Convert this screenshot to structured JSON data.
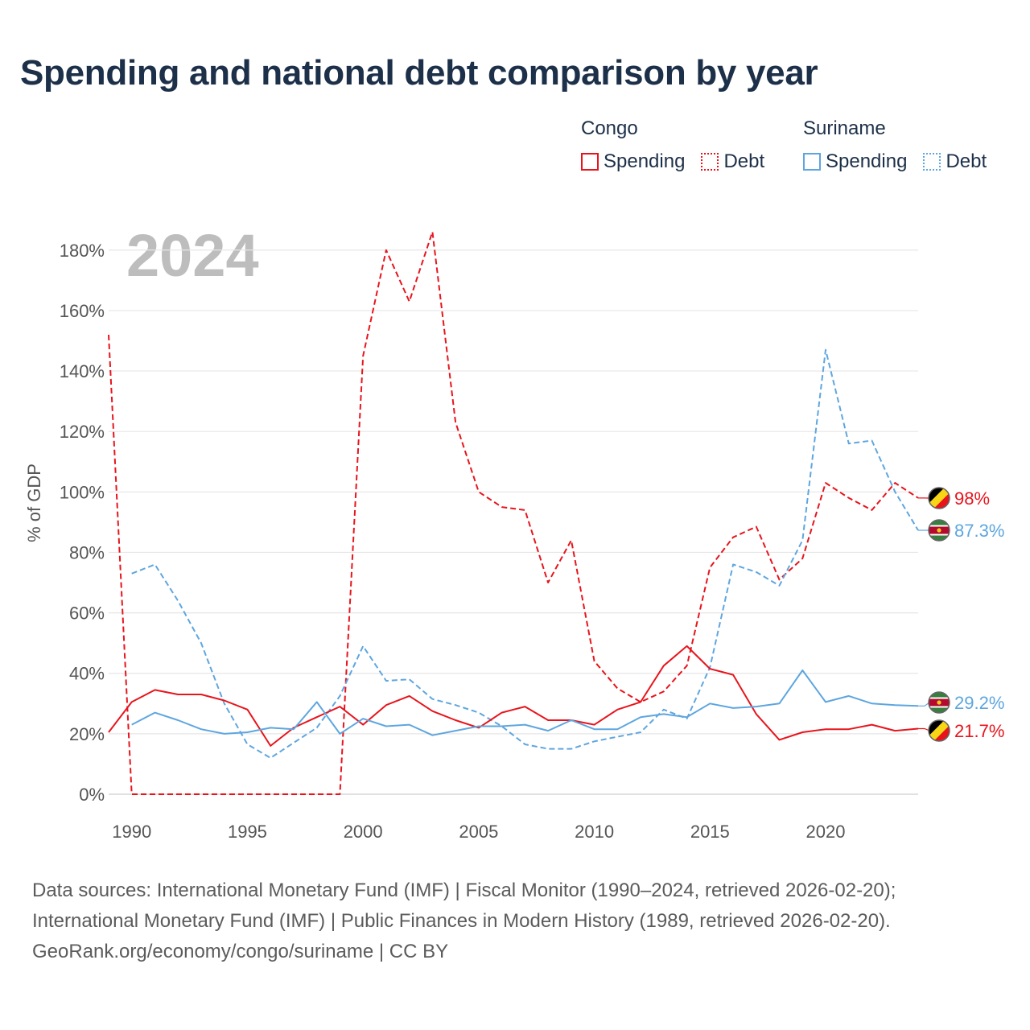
{
  "title": "Spending and national debt comparison by year",
  "legend": {
    "groups": [
      {
        "name": "Congo",
        "spending_label": "Spending",
        "debt_label": "Debt",
        "color": "#e8141c"
      },
      {
        "name": "Suriname",
        "spending_label": "Spending",
        "debt_label": "Debt",
        "color": "#5ea6df"
      }
    ]
  },
  "year_watermark": "2024",
  "footer": {
    "line1": "Data sources: International Monetary Fund (IMF) | Fiscal Monitor (1990–2024, retrieved 2026-02-20);",
    "line2": "International Monetary Fund (IMF) | Public Finances in Modern History (1989, retrieved 2026-02-20).",
    "line3": "GeoRank.org/economy/congo/suriname | CC BY"
  },
  "chart_data": {
    "type": "line",
    "title": "Spending and national debt comparison by year",
    "xlabel": "",
    "ylabel": "% of GDP",
    "xlim": [
      1989,
      2024
    ],
    "ylim": [
      0,
      185
    ],
    "y_ticks": [
      0,
      20,
      40,
      60,
      80,
      100,
      120,
      140,
      160,
      180
    ],
    "y_tick_labels": [
      "0%",
      "20%",
      "40%",
      "60%",
      "80%",
      "100%",
      "120%",
      "140%",
      "160%",
      "180%"
    ],
    "x_ticks": [
      1990,
      1995,
      2000,
      2005,
      2010,
      2015,
      2020
    ],
    "x_tick_labels": [
      "1990",
      "1995",
      "2000",
      "2005",
      "2010",
      "2015",
      "2020"
    ],
    "grid": true,
    "legend_position": "top-right",
    "series": [
      {
        "name": "Congo Debt",
        "country": "Congo",
        "measure": "Debt",
        "color": "#e8141c",
        "dashed": true,
        "x": [
          1989,
          1990,
          1991,
          1992,
          1993,
          1994,
          1995,
          1996,
          1997,
          1998,
          1999,
          2000,
          2001,
          2002,
          2003,
          2004,
          2005,
          2006,
          2007,
          2008,
          2009,
          2010,
          2011,
          2012,
          2013,
          2014,
          2015,
          2016,
          2017,
          2018,
          2019,
          2020,
          2021,
          2022,
          2023,
          2024
        ],
        "values": [
          152,
          0,
          0,
          0,
          0,
          0,
          0,
          0,
          0,
          0,
          0,
          145,
          180,
          163,
          186,
          123,
          100,
          95,
          94,
          70,
          84,
          44,
          35,
          30.5,
          34,
          42.5,
          75,
          85,
          88.5,
          71,
          78,
          103,
          98,
          94,
          103,
          98
        ],
        "end_label": "98%"
      },
      {
        "name": "Suriname Debt",
        "country": "Suriname",
        "measure": "Debt",
        "color": "#5ea6df",
        "dashed": true,
        "x": [
          1990,
          1991,
          1992,
          1993,
          1994,
          1995,
          1996,
          1997,
          1998,
          1999,
          2000,
          2001,
          2002,
          2003,
          2004,
          2005,
          2006,
          2007,
          2008,
          2009,
          2010,
          2011,
          2012,
          2013,
          2014,
          2015,
          2016,
          2017,
          2018,
          2019,
          2020,
          2021,
          2022,
          2023,
          2024
        ],
        "values": [
          73,
          76,
          64,
          50,
          30,
          16.5,
          12,
          17,
          22,
          32.5,
          49,
          37.5,
          38,
          31.5,
          29.5,
          27,
          22.5,
          16.5,
          15,
          15,
          17.5,
          19,
          20.5,
          28,
          25,
          42,
          76,
          73.5,
          69,
          84,
          147,
          116,
          117,
          100,
          87.3
        ],
        "end_label": "87.3%"
      },
      {
        "name": "Congo Spending",
        "country": "Congo",
        "measure": "Spending",
        "color": "#e8141c",
        "dashed": false,
        "x": [
          1989,
          1990,
          1991,
          1992,
          1993,
          1994,
          1995,
          1996,
          1997,
          1998,
          1999,
          2000,
          2001,
          2002,
          2003,
          2004,
          2005,
          2006,
          2007,
          2008,
          2009,
          2010,
          2011,
          2012,
          2013,
          2014,
          2015,
          2016,
          2017,
          2018,
          2019,
          2020,
          2021,
          2022,
          2023,
          2024
        ],
        "values": [
          20.5,
          30.5,
          34.5,
          33,
          33,
          31,
          28,
          16,
          22,
          25.5,
          29,
          23,
          29.5,
          32.5,
          27.5,
          24.5,
          22,
          27,
          29,
          24.5,
          24.5,
          23,
          28,
          30.5,
          42.5,
          49,
          41.5,
          39.5,
          26.5,
          18,
          20.5,
          21.5,
          21.5,
          23,
          21,
          21.7
        ],
        "end_label": "21.7%"
      },
      {
        "name": "Suriname Spending",
        "country": "Suriname",
        "measure": "Spending",
        "color": "#5ea6df",
        "dashed": false,
        "x": [
          1990,
          1991,
          1992,
          1993,
          1994,
          1995,
          1996,
          1997,
          1998,
          1999,
          2000,
          2001,
          2002,
          2003,
          2004,
          2005,
          2006,
          2007,
          2008,
          2009,
          2010,
          2011,
          2012,
          2013,
          2014,
          2015,
          2016,
          2017,
          2018,
          2019,
          2020,
          2021,
          2022,
          2023,
          2024
        ],
        "values": [
          23,
          27,
          24.5,
          21.5,
          20,
          20.5,
          22,
          21.5,
          30.5,
          20,
          25,
          22.5,
          23,
          19.5,
          21,
          22.5,
          22.5,
          23,
          21,
          24.5,
          21.5,
          21.5,
          25.5,
          26.5,
          25.5,
          30,
          28.5,
          29,
          30,
          41,
          30.5,
          32.5,
          30,
          29.5,
          29.2
        ],
        "end_label": "29.2%"
      }
    ]
  }
}
